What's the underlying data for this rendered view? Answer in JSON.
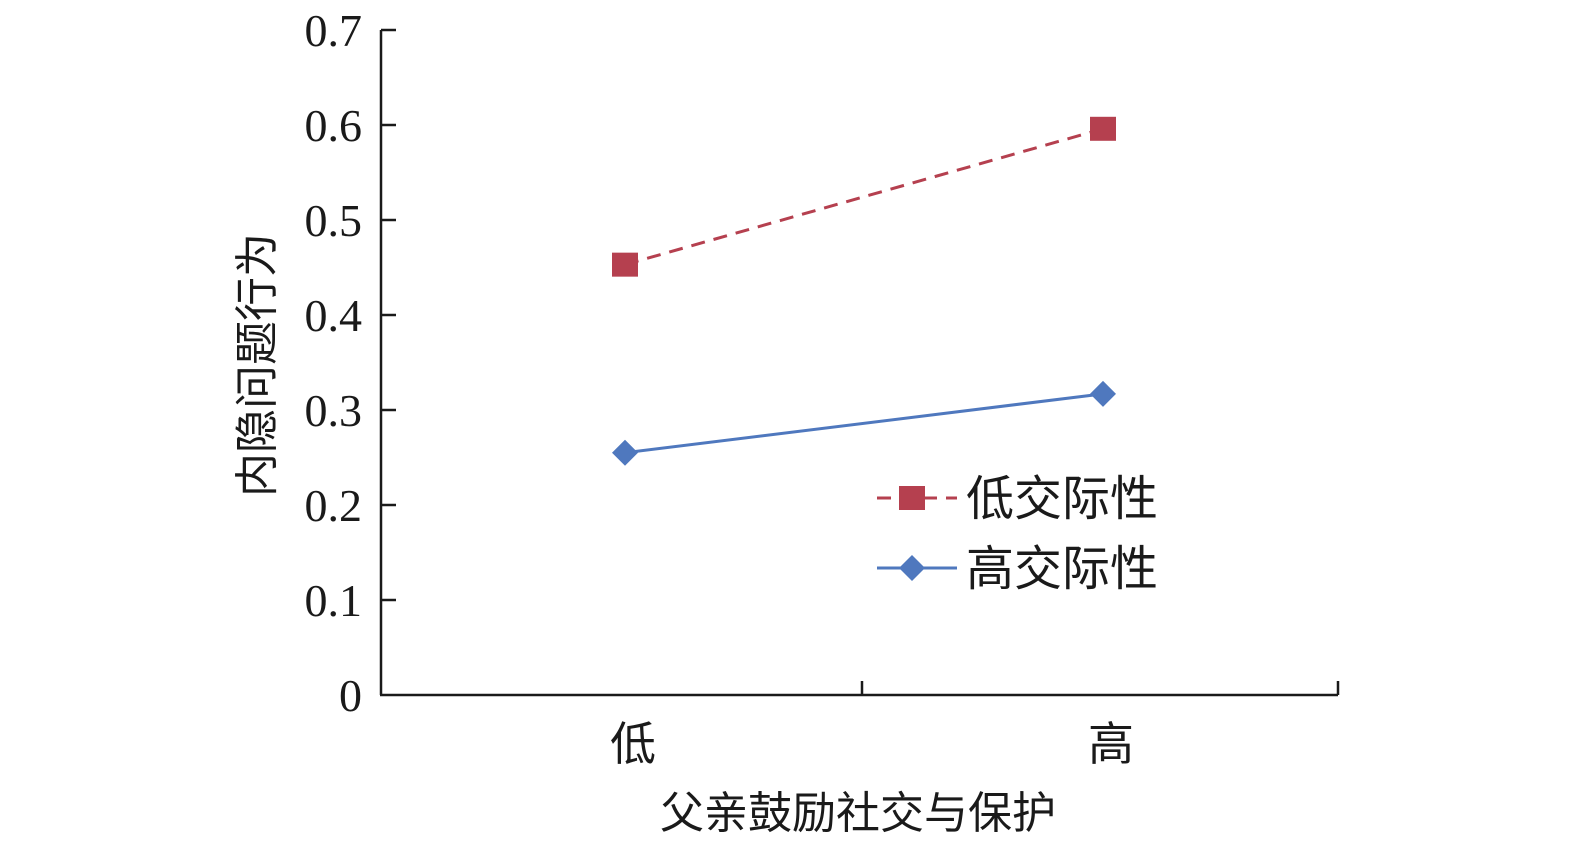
{
  "chart_data": {
    "type": "line",
    "title": "",
    "xlabel": "父亲鼓励社交与保护",
    "ylabel": "内隐问题行为",
    "categories": [
      "低",
      "高"
    ],
    "ylim": [
      0,
      0.7
    ],
    "yticks": [
      "0",
      "0.1",
      "0.2",
      "0.3",
      "0.4",
      "0.5",
      "0.6",
      "0.7"
    ],
    "grid": false,
    "legend_position": "right",
    "series": [
      {
        "name": "低交际性",
        "values": [
          0.453,
          0.596
        ],
        "color": "#b5404f",
        "dash": "dashed",
        "marker": "square"
      },
      {
        "name": "高交际性",
        "values": [
          0.255,
          0.317
        ],
        "color": "#4f78be",
        "dash": "solid",
        "marker": "diamond"
      }
    ]
  }
}
